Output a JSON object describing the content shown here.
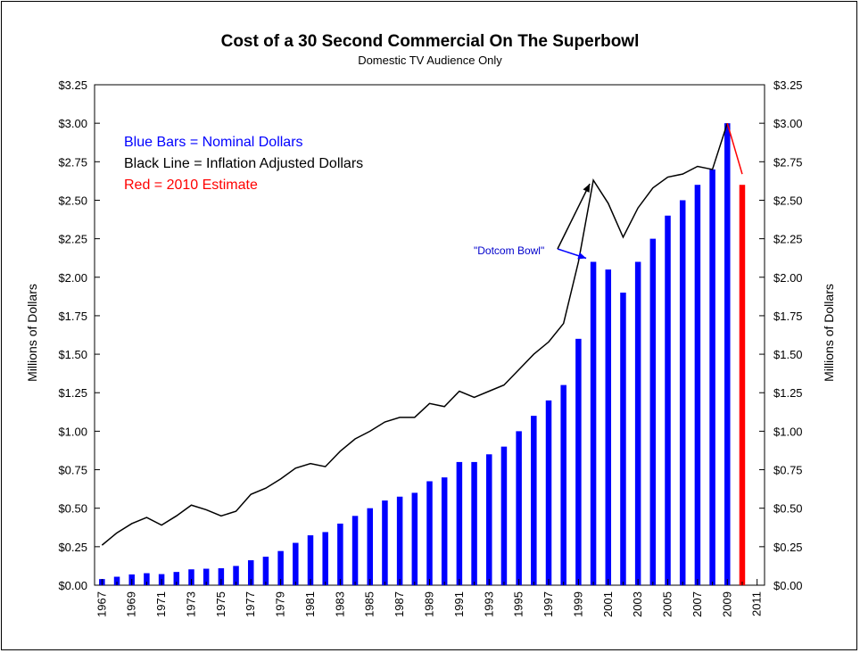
{
  "chart_data": {
    "type": "bar",
    "title": "Cost of a 30 Second Commercial On The Superbowl",
    "subtitle": "Domestic TV Audience Only",
    "ylabel_left": "Millions of Dollars",
    "ylabel_right": "Millions of Dollars",
    "xlim": [
      1966.5,
      2011.5
    ],
    "ylim": [
      0,
      3.25
    ],
    "y_ticks": [
      0,
      0.25,
      0.5,
      0.75,
      1.0,
      1.25,
      1.5,
      1.75,
      2.0,
      2.25,
      2.5,
      2.75,
      3.0,
      3.25
    ],
    "y_tick_labels": [
      "$0.00",
      "$0.25",
      "$0.50",
      "$0.75",
      "$1.00",
      "$1.25",
      "$1.50",
      "$1.75",
      "$2.00",
      "$2.25",
      "$2.50",
      "$2.75",
      "$3.00",
      "$3.25"
    ],
    "x_tick_labels": [
      "1967",
      "1969",
      "1971",
      "1973",
      "1975",
      "1977",
      "1979",
      "1981",
      "1983",
      "1985",
      "1987",
      "1989",
      "1991",
      "1993",
      "1995",
      "1997",
      "1999",
      "2001",
      "2003",
      "2005",
      "2007",
      "2009",
      "2011"
    ],
    "x_tick_years": [
      1967,
      1969,
      1971,
      1973,
      1975,
      1977,
      1979,
      1981,
      1983,
      1985,
      1987,
      1989,
      1991,
      1993,
      1995,
      1997,
      1999,
      2001,
      2003,
      2005,
      2007,
      2009,
      2011
    ],
    "legend": [
      {
        "text": "Blue Bars = Nominal Dollars",
        "color": "#0000ff"
      },
      {
        "text": "Black Line = Inflation Adjusted Dollars",
        "color": "#000000"
      },
      {
        "text": "Red = 2010 Estimate",
        "color": "#ff0000"
      }
    ],
    "legend_placement": "top-left",
    "colors": {
      "bars": "#0000ff",
      "estimate": "#ff0000",
      "line": "#000000",
      "annotation": "#0000ff"
    },
    "years": [
      1967,
      1968,
      1969,
      1970,
      1971,
      1972,
      1973,
      1974,
      1975,
      1976,
      1977,
      1978,
      1979,
      1980,
      1981,
      1982,
      1983,
      1984,
      1985,
      1986,
      1987,
      1988,
      1989,
      1990,
      1991,
      1992,
      1993,
      1994,
      1995,
      1996,
      1997,
      1998,
      1999,
      2000,
      2001,
      2002,
      2003,
      2004,
      2005,
      2006,
      2007,
      2008,
      2009,
      2010
    ],
    "nominal": [
      0.04,
      0.055,
      0.07,
      0.078,
      0.072,
      0.086,
      0.103,
      0.107,
      0.11,
      0.125,
      0.162,
      0.185,
      0.222,
      0.275,
      0.324,
      0.345,
      0.4,
      0.45,
      0.5,
      0.55,
      0.575,
      0.6,
      0.675,
      0.7,
      0.8,
      0.8,
      0.85,
      0.9,
      1.0,
      1.1,
      1.2,
      1.3,
      1.6,
      2.1,
      2.05,
      1.9,
      2.1,
      2.25,
      2.4,
      2.5,
      2.6,
      2.7,
      3.0,
      2.6
    ],
    "estimate_year": 2010,
    "inflation_adjusted": [
      0.26,
      0.34,
      0.4,
      0.44,
      0.39,
      0.45,
      0.52,
      0.49,
      0.45,
      0.48,
      0.59,
      0.63,
      0.69,
      0.76,
      0.79,
      0.77,
      0.87,
      0.95,
      1.0,
      1.06,
      1.09,
      1.09,
      1.18,
      1.16,
      1.26,
      1.22,
      1.26,
      1.3,
      1.4,
      1.5,
      1.58,
      1.7,
      2.1,
      2.63,
      2.48,
      2.26,
      2.45,
      2.58,
      2.65,
      2.67,
      2.72,
      2.7,
      3.0,
      2.67
    ],
    "annotation": {
      "text": "\"Dotcom Bowl\"",
      "year": 2000
    }
  }
}
